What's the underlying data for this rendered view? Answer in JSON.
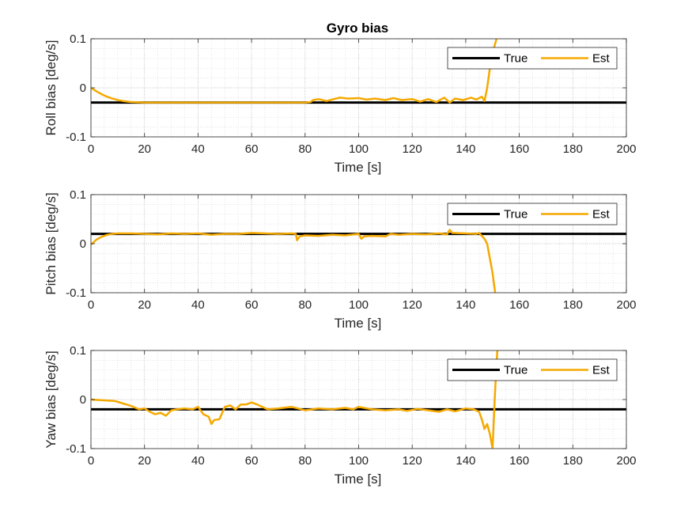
{
  "figure": {
    "title": "Gyro bias"
  },
  "colors": {
    "true_line": "#000000",
    "est_line": "#F5A900",
    "axis": "#262626",
    "grid": "#d9d9d9"
  },
  "chart_data": [
    {
      "type": "line",
      "title": "Gyro bias",
      "xlabel": "Time [s]",
      "ylabel": "Roll bias [deg/s]",
      "xlim": [
        0,
        200
      ],
      "ylim": [
        -0.1,
        0.1
      ],
      "xticks": [
        0,
        20,
        40,
        60,
        80,
        100,
        120,
        140,
        160,
        180,
        200
      ],
      "yticks": [
        -0.1,
        0,
        0.1
      ],
      "ytick_labels": [
        "-0.1",
        "0",
        "0.1"
      ],
      "grid": "on (major + minor, dotted)",
      "legend": "top-right",
      "series": [
        {
          "name": "True",
          "x": [
            0,
            200
          ],
          "y": [
            -0.03,
            -0.03
          ]
        },
        {
          "name": "Est",
          "x": [
            0,
            2,
            4,
            6,
            8,
            10,
            12,
            15,
            20,
            30,
            40,
            50,
            60,
            70,
            80,
            82,
            83,
            85,
            88,
            90,
            93,
            96,
            100,
            103,
            106,
            110,
            113,
            116,
            120,
            123,
            126,
            129,
            132,
            134,
            136,
            139,
            142,
            144,
            146,
            147,
            148,
            149,
            150,
            151,
            152
          ],
          "y": [
            0,
            -0.007,
            -0.013,
            -0.018,
            -0.022,
            -0.025,
            -0.027,
            -0.029,
            -0.03,
            -0.03,
            -0.03,
            -0.03,
            -0.03,
            -0.03,
            -0.03,
            -0.029,
            -0.025,
            -0.023,
            -0.027,
            -0.024,
            -0.02,
            -0.022,
            -0.021,
            -0.024,
            -0.022,
            -0.025,
            -0.021,
            -0.025,
            -0.023,
            -0.028,
            -0.023,
            -0.029,
            -0.02,
            -0.03,
            -0.022,
            -0.025,
            -0.02,
            -0.024,
            -0.018,
            -0.027,
            0.0,
            0.04,
            0.07,
            0.09,
            0.11
          ]
        }
      ]
    },
    {
      "type": "line",
      "xlabel": "Time [s]",
      "ylabel": "Pitch bias [deg/s]",
      "xlim": [
        0,
        200
      ],
      "ylim": [
        -0.1,
        0.1
      ],
      "xticks": [
        0,
        20,
        40,
        60,
        80,
        100,
        120,
        140,
        160,
        180,
        200
      ],
      "yticks": [
        -0.1,
        0,
        0.1
      ],
      "ytick_labels": [
        "-0.1",
        "0",
        "0.1"
      ],
      "grid": "on (major + minor, dotted)",
      "legend": "top-right",
      "series": [
        {
          "name": "True",
          "x": [
            0,
            200
          ],
          "y": [
            0.02,
            0.02
          ]
        },
        {
          "name": "Est",
          "x": [
            0,
            2,
            4,
            6,
            8,
            10,
            15,
            20,
            25,
            30,
            35,
            40,
            45,
            50,
            55,
            60,
            65,
            70,
            75,
            76.5,
            77,
            78,
            80,
            85,
            90,
            95,
            100,
            101,
            102,
            105,
            110,
            112,
            115,
            120,
            125,
            130,
            133,
            134,
            135,
            140,
            144,
            145,
            146,
            147,
            148,
            149,
            150,
            151
          ],
          "y": [
            -0.002,
            0.008,
            0.014,
            0.018,
            0.02,
            0.021,
            0.021,
            0.02,
            0.019,
            0.021,
            0.02,
            0.021,
            0.018,
            0.02,
            0.02,
            0.022,
            0.021,
            0.02,
            0.021,
            0.02,
            0.007,
            0.015,
            0.017,
            0.016,
            0.018,
            0.017,
            0.02,
            0.01,
            0.015,
            0.016,
            0.015,
            0.02,
            0.018,
            0.02,
            0.019,
            0.021,
            0.019,
            0.028,
            0.022,
            0.021,
            0.02,
            0.022,
            0.016,
            0.01,
            0.0,
            -0.03,
            -0.06,
            -0.1
          ]
        }
      ]
    },
    {
      "type": "line",
      "xlabel": "Time [s]",
      "ylabel": "Yaw bias [deg/s]",
      "xlim": [
        0,
        200
      ],
      "ylim": [
        -0.1,
        0.1
      ],
      "xticks": [
        0,
        20,
        40,
        60,
        80,
        100,
        120,
        140,
        160,
        180,
        200
      ],
      "yticks": [
        -0.1,
        0,
        0.1
      ],
      "ytick_labels": [
        "-0.1",
        "0",
        "0.1"
      ],
      "grid": "on (major + minor, dotted)",
      "legend": "top-right",
      "series": [
        {
          "name": "True",
          "x": [
            0,
            200
          ],
          "y": [
            -0.02,
            -0.02
          ]
        },
        {
          "name": "Est",
          "x": [
            0,
            3,
            6,
            9,
            12,
            15,
            18,
            20,
            22,
            24,
            26,
            28,
            30,
            32,
            35,
            38,
            40,
            42,
            44,
            45,
            46,
            48,
            50,
            52,
            54,
            56,
            58,
            60,
            62,
            64,
            66,
            70,
            75,
            80,
            85,
            90,
            95,
            98,
            100,
            105,
            110,
            115,
            118,
            122,
            126,
            130,
            133,
            136,
            140,
            143,
            145,
            146,
            147,
            148,
            149,
            150,
            151,
            152
          ],
          "y": [
            0,
            -0.001,
            -0.002,
            -0.003,
            -0.008,
            -0.013,
            -0.02,
            -0.018,
            -0.025,
            -0.03,
            -0.027,
            -0.033,
            -0.022,
            -0.02,
            -0.018,
            -0.02,
            -0.015,
            -0.03,
            -0.035,
            -0.05,
            -0.042,
            -0.04,
            -0.015,
            -0.012,
            -0.02,
            -0.01,
            -0.01,
            -0.006,
            -0.01,
            -0.015,
            -0.02,
            -0.018,
            -0.015,
            -0.022,
            -0.018,
            -0.02,
            -0.017,
            -0.02,
            -0.015,
            -0.02,
            -0.022,
            -0.02,
            -0.023,
            -0.019,
            -0.022,
            -0.025,
            -0.02,
            -0.024,
            -0.018,
            -0.02,
            -0.025,
            -0.04,
            -0.06,
            -0.05,
            -0.07,
            -0.1,
            0.02,
            0.12
          ]
        }
      ]
    }
  ]
}
